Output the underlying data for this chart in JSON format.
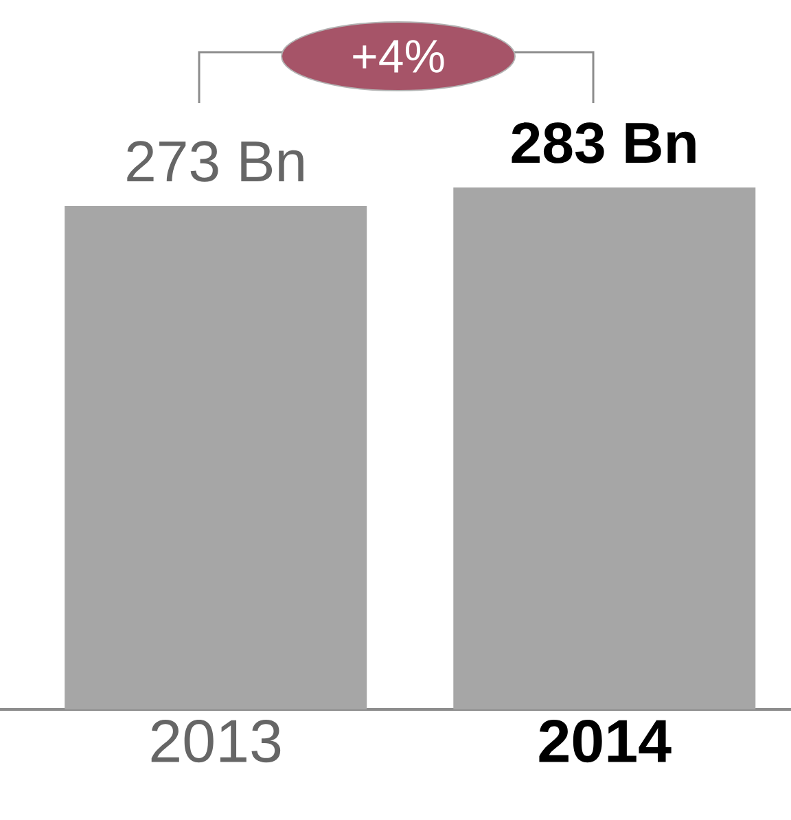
{
  "chart_data": {
    "type": "bar",
    "categories": [
      "2013",
      "2014"
    ],
    "values": [
      273,
      283
    ],
    "color": "#a6a6a6",
    "value_labels": [
      "273 Bn",
      "283 Bn"
    ],
    "annotations": [
      "+4%"
    ]
  }
}
